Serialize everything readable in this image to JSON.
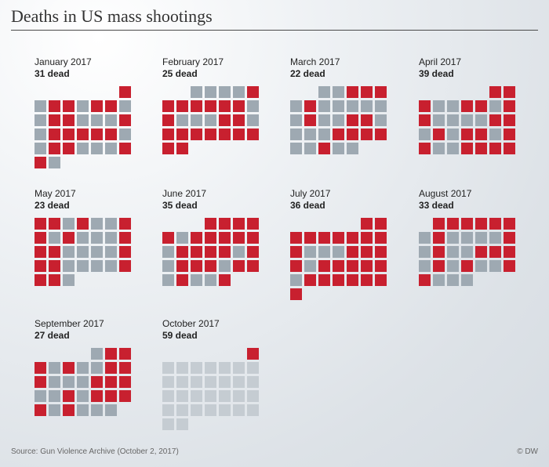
{
  "title": "Deaths in US mass shootings",
  "source": "Source: Gun Violence Archive (October 2, 2017)",
  "credit": "© DW",
  "colors": {
    "shooting_day": "#c8202f",
    "no_shooting_day": "#9ea9b2",
    "future_day": "#c5ccd2"
  },
  "chart_data": {
    "type": "heatmap",
    "legend": "",
    "months": [
      {
        "name": "January 2017",
        "dead": "31 dead",
        "first_weekday": 6,
        "days": 31,
        "red_days": [
          1,
          3,
          4,
          6,
          7,
          10,
          11,
          15,
          17,
          18,
          19,
          20,
          21,
          24,
          25,
          29,
          30
        ]
      },
      {
        "name": "February 2017",
        "dead": "25 dead",
        "first_weekday": 2,
        "days": 28,
        "red_days": [
          5,
          6,
          7,
          8,
          9,
          10,
          11,
          13,
          17,
          18,
          20,
          21,
          22,
          23,
          24,
          25,
          26,
          27,
          28
        ]
      },
      {
        "name": "March 2017",
        "dead": "22 dead",
        "first_weekday": 2,
        "days": 31,
        "red_days": [
          3,
          4,
          5,
          7,
          14,
          17,
          18,
          23,
          24,
          25,
          26,
          29
        ]
      },
      {
        "name": "April 2017",
        "dead": "39 dead",
        "first_weekday": 5,
        "days": 30,
        "red_days": [
          1,
          2,
          3,
          6,
          7,
          9,
          10,
          15,
          16,
          18,
          20,
          21,
          23,
          24,
          27,
          28,
          29,
          30
        ]
      },
      {
        "name": "May 2017",
        "dead": "23 dead",
        "first_weekday": 0,
        "days": 31,
        "red_days": [
          1,
          2,
          4,
          7,
          8,
          10,
          14,
          15,
          16,
          21,
          22,
          23,
          28,
          29,
          30
        ]
      },
      {
        "name": "June 2017",
        "dead": "35 dead",
        "first_weekday": 3,
        "days": 30,
        "red_days": [
          1,
          2,
          3,
          4,
          5,
          7,
          8,
          9,
          10,
          11,
          13,
          14,
          15,
          16,
          18,
          20,
          21,
          22,
          24,
          25,
          27,
          30
        ]
      },
      {
        "name": "July 2017",
        "dead": "36 dead",
        "first_weekday": 5,
        "days": 31,
        "red_days": [
          1,
          2,
          3,
          4,
          5,
          6,
          7,
          8,
          9,
          10,
          14,
          15,
          16,
          17,
          19,
          20,
          21,
          22,
          23,
          25,
          26,
          27,
          28,
          29,
          30,
          31
        ]
      },
      {
        "name": "August 2017",
        "dead": "33 dead",
        "first_weekday": 1,
        "days": 31,
        "red_days": [
          1,
          2,
          3,
          4,
          5,
          6,
          8,
          13,
          15,
          18,
          19,
          20,
          22,
          24,
          27,
          28
        ]
      },
      {
        "name": "September 2017",
        "dead": "27 dead",
        "first_weekday": 4,
        "days": 30,
        "red_days": [
          2,
          3,
          4,
          6,
          9,
          10,
          11,
          15,
          16,
          17,
          20,
          22,
          23,
          24,
          25,
          27
        ]
      },
      {
        "name": "October 2017",
        "dead": "59 dead",
        "first_weekday": 6,
        "days": 31,
        "red_days": [
          1
        ]
      }
    ]
  }
}
